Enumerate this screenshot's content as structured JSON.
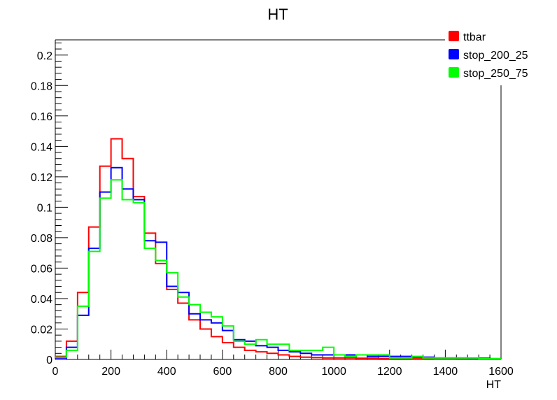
{
  "chart_data": {
    "type": "histogram",
    "title": "HT",
    "xlabel": "HT",
    "ylabel": "",
    "xlim": [
      0,
      1600
    ],
    "ylim": [
      0,
      0.21
    ],
    "x_ticks": [
      0,
      200,
      400,
      600,
      800,
      1000,
      1200,
      1400,
      1600
    ],
    "y_ticks": [
      0,
      0.02,
      0.04,
      0.06,
      0.08,
      0.1,
      0.12,
      0.14,
      0.16,
      0.18,
      0.2
    ],
    "y_tick_labels": [
      "0",
      "0.02",
      "0.04",
      "0.06",
      "0.08",
      "0.1",
      "0.12",
      "0.14",
      "0.16",
      "0.18",
      "0.2"
    ],
    "bin_width": 40,
    "bin_edges_start": 0,
    "grid": false,
    "legend_position": "top-right",
    "series": [
      {
        "name": "ttbar",
        "color": "#ff0000",
        "values": [
          0.002,
          0.012,
          0.044,
          0.087,
          0.127,
          0.145,
          0.132,
          0.107,
          0.083,
          0.063,
          0.046,
          0.037,
          0.026,
          0.02,
          0.015,
          0.011,
          0.008,
          0.006,
          0.005,
          0.004,
          0.003,
          0.002,
          0.0015,
          0.0012,
          0.001,
          0.001,
          0.001,
          0.0008,
          0.0008,
          0.0006,
          0.0005,
          0.0005,
          0.0004,
          0.0004,
          0.0003,
          0.0003,
          0.0002,
          0.0002,
          0.0002,
          0.0002
        ]
      },
      {
        "name": "stop_200_25",
        "color": "#0000ff",
        "values": [
          0.001,
          0.008,
          0.029,
          0.073,
          0.11,
          0.126,
          0.112,
          0.105,
          0.078,
          0.077,
          0.048,
          0.044,
          0.03,
          0.026,
          0.024,
          0.019,
          0.013,
          0.012,
          0.009,
          0.008,
          0.006,
          0.005,
          0.004,
          0.003,
          0.003,
          0.003,
          0.003,
          0.003,
          0.002,
          0.002,
          0.002,
          0.002,
          0.0015,
          0.0015,
          0.001,
          0.001,
          0.001,
          0.0008,
          0.0008,
          0.0005
        ]
      },
      {
        "name": "stop_250_75",
        "color": "#00ff00",
        "values": [
          0.0015,
          0.006,
          0.035,
          0.071,
          0.106,
          0.118,
          0.105,
          0.103,
          0.073,
          0.065,
          0.057,
          0.041,
          0.036,
          0.031,
          0.028,
          0.022,
          0.012,
          0.01,
          0.013,
          0.01,
          0.01,
          0.006,
          0.006,
          0.006,
          0.008,
          0.003,
          0.002,
          0.003,
          0.003,
          0.003,
          0.001,
          0.001,
          0.002,
          0.001,
          0.001,
          0.001,
          0.001,
          0.001,
          0.0005,
          0.0005
        ]
      }
    ]
  }
}
